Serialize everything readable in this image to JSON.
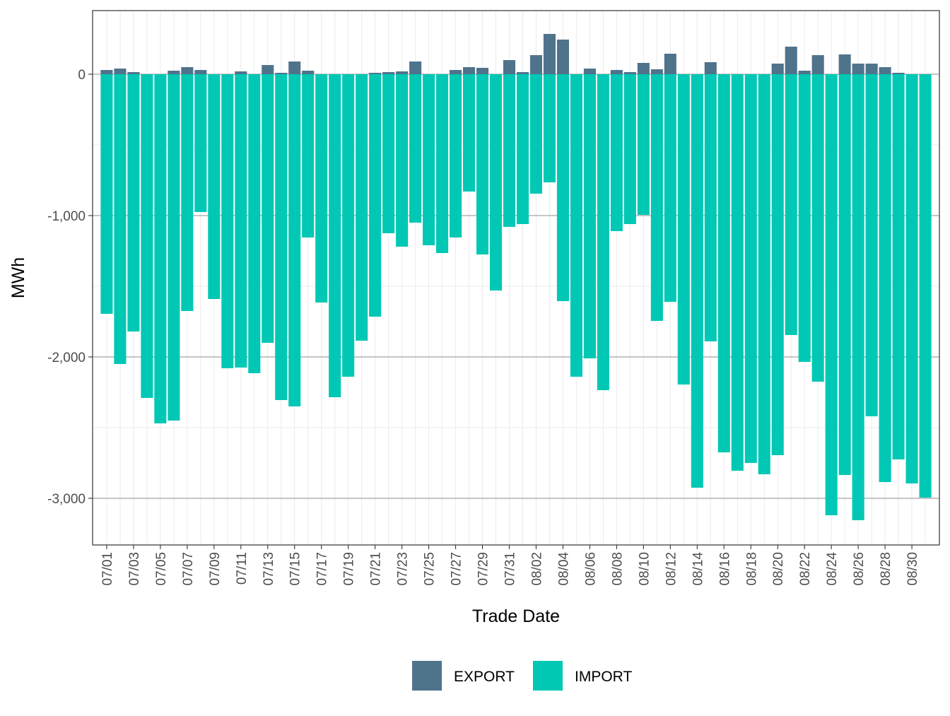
{
  "chart_data": {
    "type": "bar",
    "stacked": true,
    "title": "",
    "xlabel": "Trade Date",
    "ylabel": "MWh",
    "ylim": [
      -3330,
      450
    ],
    "yticks": [
      0,
      -1000,
      -2000,
      -3000
    ],
    "ytick_labels": [
      "0",
      "-1,000",
      "-2,000",
      "-3,000"
    ],
    "categories": [
      "07/01",
      "07/02",
      "07/03",
      "07/04",
      "07/05",
      "07/06",
      "07/07",
      "07/08",
      "07/09",
      "07/10",
      "07/11",
      "07/12",
      "07/13",
      "07/14",
      "07/15",
      "07/16",
      "07/17",
      "07/18",
      "07/19",
      "07/20",
      "07/21",
      "07/22",
      "07/23",
      "07/24",
      "07/25",
      "07/26",
      "07/27",
      "07/28",
      "07/29",
      "07/30",
      "07/31",
      "08/01",
      "08/02",
      "08/03",
      "08/04",
      "08/05",
      "08/06",
      "08/07",
      "08/08",
      "08/09",
      "08/10",
      "08/11",
      "08/12",
      "08/13",
      "08/14",
      "08/15",
      "08/16",
      "08/17",
      "08/18",
      "08/19",
      "08/20",
      "08/21",
      "08/22",
      "08/23",
      "08/24",
      "08/25",
      "08/26",
      "08/27",
      "08/28",
      "08/29",
      "08/30",
      "08/31"
    ],
    "xtick_labels": [
      "07/01",
      "07/03",
      "07/05",
      "07/07",
      "07/09",
      "07/11",
      "07/13",
      "07/15",
      "07/17",
      "07/19",
      "07/21",
      "07/23",
      "07/25",
      "07/27",
      "07/29",
      "07/31",
      "08/02",
      "08/04",
      "08/06",
      "08/08",
      "08/10",
      "08/12",
      "08/14",
      "08/16",
      "08/18",
      "08/20",
      "08/22",
      "08/24",
      "08/26",
      "08/28",
      "08/30"
    ],
    "series": [
      {
        "name": "EXPORT",
        "color": "#50738c",
        "values": [
          30,
          40,
          15,
          0,
          0,
          25,
          50,
          30,
          0,
          0,
          20,
          0,
          65,
          10,
          90,
          25,
          0,
          0,
          0,
          0,
          10,
          15,
          20,
          90,
          0,
          0,
          30,
          50,
          45,
          0,
          100,
          15,
          135,
          285,
          245,
          0,
          40,
          0,
          30,
          15,
          80,
          35,
          145,
          0,
          0,
          85,
          0,
          0,
          0,
          0,
          75,
          195,
          25,
          135,
          0,
          140,
          75,
          75,
          50,
          10,
          0,
          0
        ]
      },
      {
        "name": "IMPORT",
        "color": "#00c8b4",
        "values": [
          -1695,
          -2050,
          -1820,
          -2290,
          -2470,
          -2450,
          -1675,
          -975,
          -1590,
          -2080,
          -2075,
          -2115,
          -1900,
          -2305,
          -2350,
          -1155,
          -1615,
          -2285,
          -2140,
          -1885,
          -1715,
          -1125,
          -1220,
          -1050,
          -1210,
          -1265,
          -1155,
          -830,
          -1275,
          -1530,
          -1080,
          -1060,
          -845,
          -765,
          -1605,
          -2140,
          -2010,
          -2235,
          -1110,
          -1060,
          -995,
          -1745,
          -1610,
          -2195,
          -2925,
          -1890,
          -2675,
          -2805,
          -2750,
          -2830,
          -2695,
          -1845,
          -2035,
          -2175,
          -3120,
          -2835,
          -3155,
          -2420,
          -2885,
          -2725,
          -2895,
          -2995
        ]
      }
    ],
    "legend": {
      "position": "bottom",
      "entries": [
        "EXPORT",
        "IMPORT"
      ]
    },
    "grid": true
  }
}
